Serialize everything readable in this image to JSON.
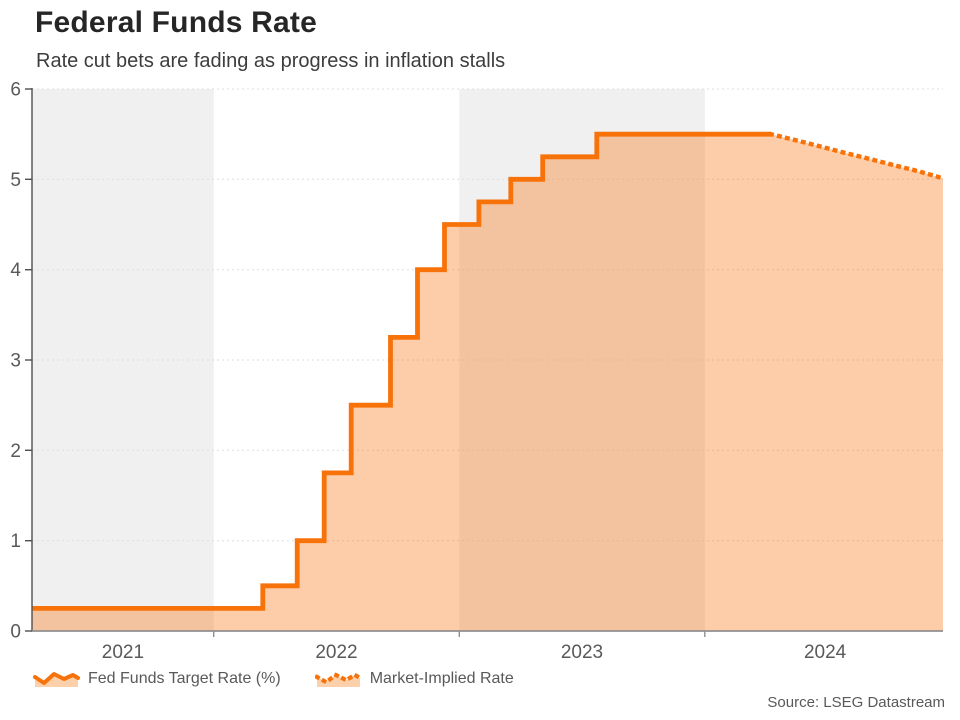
{
  "chart_data": {
    "type": "area",
    "title": "Federal Funds Rate",
    "subtitle": "Rate cut bets are fading as progress in inflation stalls",
    "source": "Source: LSEG Datastream",
    "ylim": [
      0,
      6
    ],
    "y_ticks": [
      0,
      1,
      2,
      3,
      4,
      5,
      6
    ],
    "x_domain": [
      2021.26,
      2024.97
    ],
    "x_tick_positions": [
      2022,
      2023,
      2024
    ],
    "x_labels": [
      {
        "label": "2021",
        "t": 2021.63
      },
      {
        "label": "2022",
        "t": 2022.5
      },
      {
        "label": "2023",
        "t": 2023.5
      },
      {
        "label": "2024",
        "t": 2024.49
      }
    ],
    "bands": [
      {
        "from": 2021.26,
        "to": 2022.0
      },
      {
        "from": 2023.0,
        "to": 2024.0
      }
    ],
    "grid": "dashed horizontal gridlines at integer values",
    "legend_position": "bottom",
    "series": [
      {
        "name": "Fed Funds Target Rate (%)",
        "style": "solid-step-area",
        "points": [
          [
            2021.26,
            0.25
          ],
          [
            2022.2,
            0.25
          ],
          [
            2022.2,
            0.5
          ],
          [
            2022.34,
            0.5
          ],
          [
            2022.34,
            1.0
          ],
          [
            2022.45,
            1.0
          ],
          [
            2022.45,
            1.75
          ],
          [
            2022.56,
            1.75
          ],
          [
            2022.56,
            2.5
          ],
          [
            2022.72,
            2.5
          ],
          [
            2022.72,
            3.25
          ],
          [
            2022.83,
            3.25
          ],
          [
            2022.83,
            4.0
          ],
          [
            2022.94,
            4.0
          ],
          [
            2022.94,
            4.5
          ],
          [
            2023.08,
            4.5
          ],
          [
            2023.08,
            4.75
          ],
          [
            2023.21,
            4.75
          ],
          [
            2023.21,
            5.0
          ],
          [
            2023.34,
            5.0
          ],
          [
            2023.34,
            5.25
          ],
          [
            2023.56,
            5.25
          ],
          [
            2023.56,
            5.5
          ],
          [
            2024.27,
            5.5
          ]
        ]
      },
      {
        "name": "Market-Implied Rate",
        "style": "dotted-area",
        "points": [
          [
            2024.27,
            5.5
          ],
          [
            2024.42,
            5.4
          ],
          [
            2024.56,
            5.3
          ],
          [
            2024.68,
            5.22
          ],
          [
            2024.78,
            5.15
          ],
          [
            2024.87,
            5.09
          ],
          [
            2024.97,
            5.01
          ]
        ]
      }
    ],
    "colors": {
      "line": "#f8720a",
      "fill": "rgba(249,113,10,0.35)",
      "band": "#f0f0f0",
      "grid": "#dedede",
      "y_axis": "#4f4f4f",
      "x_axis": "#909090",
      "axis_text": "#595959",
      "title_text": "#262626",
      "legend_icon_fill": "#fcd0ab"
    }
  },
  "legend": {
    "items": [
      {
        "label": "Fed Funds Target Rate (%)",
        "style": "solid"
      },
      {
        "label": "Market-Implied Rate",
        "style": "dotted"
      }
    ]
  }
}
